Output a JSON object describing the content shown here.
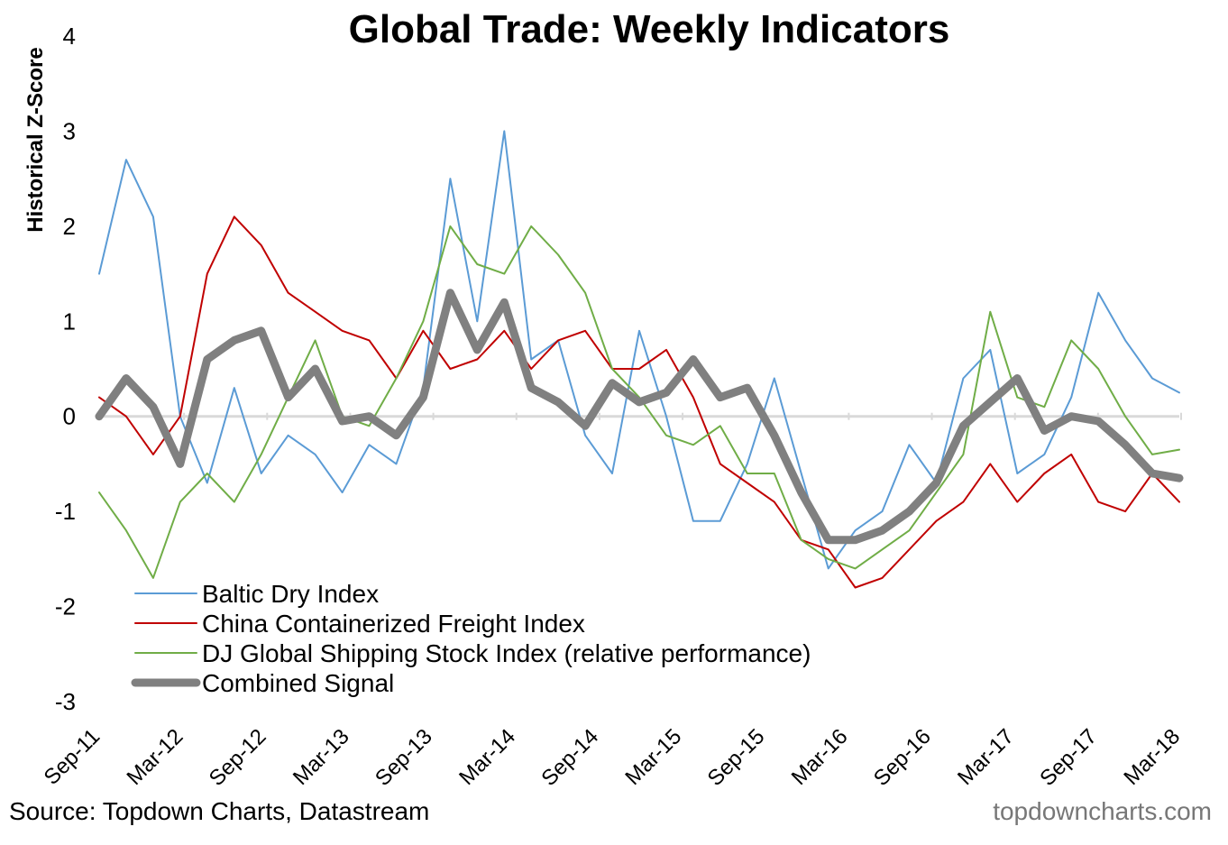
{
  "chart_data": {
    "type": "line",
    "title": "Global Trade: Weekly Indicators",
    "ylabel": "Historical Z-Score",
    "xlabel": "",
    "ylim": [
      -3,
      4
    ],
    "yticks": [
      4,
      3,
      2,
      1,
      0,
      -1,
      -2,
      -3
    ],
    "x_tick_labels": [
      "Sep-11",
      "Mar-12",
      "Sep-12",
      "Mar-13",
      "Sep-13",
      "Mar-14",
      "Sep-14",
      "Mar-15",
      "Sep-15",
      "Mar-16",
      "Sep-16",
      "Mar-17",
      "Sep-17",
      "Mar-18"
    ],
    "zero_line": true,
    "grid": false,
    "legend_position": "bottom-left",
    "x": [
      "Sep-11",
      "Nov-11",
      "Jan-12",
      "Mar-12",
      "May-12",
      "Jul-12",
      "Sep-12",
      "Nov-12",
      "Jan-13",
      "Mar-13",
      "May-13",
      "Jul-13",
      "Sep-13",
      "Nov-13",
      "Jan-14",
      "Mar-14",
      "May-14",
      "Jul-14",
      "Sep-14",
      "Nov-14",
      "Jan-15",
      "Mar-15",
      "May-15",
      "Jul-15",
      "Sep-15",
      "Nov-15",
      "Jan-16",
      "Mar-16",
      "May-16",
      "Jul-16",
      "Sep-16",
      "Nov-16",
      "Jan-17",
      "Mar-17",
      "May-17",
      "Jul-17",
      "Sep-17",
      "Nov-17",
      "Jan-18",
      "Mar-18",
      "Apr-18"
    ],
    "series": [
      {
        "name": "Baltic Dry Index",
        "color": "#5B9BD5",
        "width": 2,
        "values": [
          1.5,
          2.7,
          2.1,
          0.0,
          -0.7,
          0.3,
          -0.6,
          -0.2,
          -0.4,
          -0.8,
          -0.3,
          -0.5,
          0.3,
          2.5,
          1.0,
          3.0,
          0.6,
          0.8,
          -0.2,
          -0.6,
          0.9,
          0.0,
          -1.1,
          -1.1,
          -0.5,
          0.4,
          -0.6,
          -1.6,
          -1.2,
          -1.0,
          -0.3,
          -0.7,
          0.4,
          0.7,
          -0.6,
          -0.4,
          0.2,
          1.3,
          0.8,
          0.4,
          0.25
        ]
      },
      {
        "name": "China Containerized Freight Index",
        "color": "#C00000",
        "width": 2,
        "values": [
          0.2,
          0.0,
          -0.4,
          0.0,
          1.5,
          2.1,
          1.8,
          1.3,
          1.1,
          0.9,
          0.8,
          0.4,
          0.9,
          0.5,
          0.6,
          0.9,
          0.5,
          0.8,
          0.9,
          0.5,
          0.5,
          0.7,
          0.2,
          -0.5,
          -0.7,
          -0.9,
          -1.3,
          -1.4,
          -1.8,
          -1.7,
          -1.4,
          -1.1,
          -0.9,
          -0.5,
          -0.9,
          -0.6,
          -0.4,
          -0.9,
          -1.0,
          -0.6,
          -0.9
        ]
      },
      {
        "name": "DJ Global Shipping Stock Index (relative performance)",
        "color": "#70AD47",
        "width": 2,
        "values": [
          -0.8,
          -1.2,
          -1.7,
          -0.9,
          -0.6,
          -0.9,
          -0.4,
          0.2,
          0.8,
          0.0,
          -0.1,
          0.4,
          1.0,
          2.0,
          1.6,
          1.5,
          2.0,
          1.7,
          1.3,
          0.5,
          0.2,
          -0.2,
          -0.3,
          -0.1,
          -0.6,
          -0.6,
          -1.3,
          -1.5,
          -1.6,
          -1.4,
          -1.2,
          -0.8,
          -0.4,
          1.1,
          0.2,
          0.1,
          0.8,
          0.5,
          0.0,
          -0.4,
          -0.35
        ]
      },
      {
        "name": "Combined Signal",
        "color": "#808080",
        "width": 9,
        "values": [
          0.0,
          0.4,
          0.1,
          -0.5,
          0.6,
          0.8,
          0.9,
          0.2,
          0.5,
          -0.05,
          0.0,
          -0.2,
          0.2,
          1.3,
          0.7,
          1.2,
          0.3,
          0.15,
          -0.1,
          0.35,
          0.15,
          0.25,
          0.6,
          0.2,
          0.3,
          -0.2,
          -0.8,
          -1.3,
          -1.3,
          -1.2,
          -1.0,
          -0.7,
          -0.1,
          0.15,
          0.4,
          -0.15,
          0.0,
          -0.05,
          -0.3,
          -0.6,
          -0.65
        ]
      }
    ]
  },
  "footer": {
    "source": "Source: Topdown Charts, Datastream",
    "watermark": "topdowncharts.com"
  }
}
